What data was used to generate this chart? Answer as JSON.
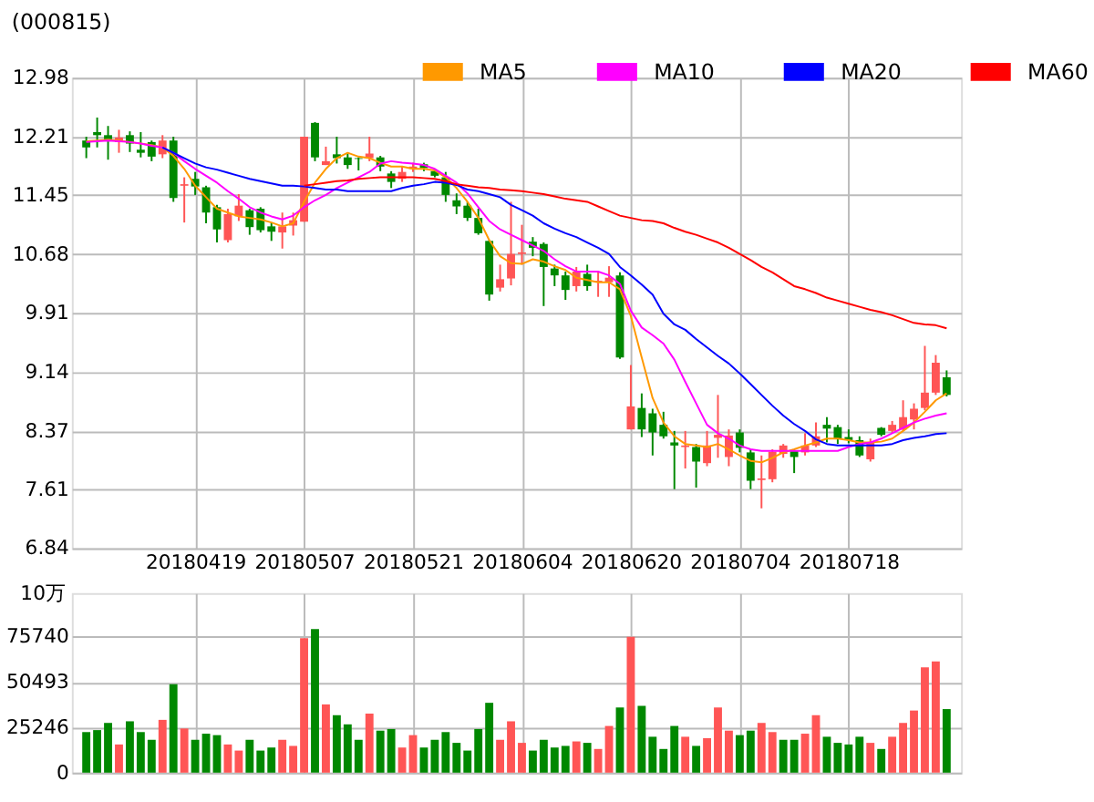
{
  "chart_data": [
    {
      "type": "candlestick",
      "title": "(000815)",
      "categories": [
        null,
        null,
        null,
        null,
        null,
        null,
        null,
        null,
        null,
        null,
        "20180419",
        null,
        null,
        null,
        null,
        null,
        null,
        null,
        null,
        null,
        "20180507",
        null,
        null,
        null,
        null,
        null,
        null,
        null,
        null,
        null,
        "20180521",
        null,
        null,
        null,
        null,
        null,
        null,
        null,
        null,
        null,
        "20180604",
        null,
        null,
        null,
        null,
        null,
        null,
        null,
        null,
        null,
        "20180620",
        null,
        null,
        null,
        null,
        null,
        null,
        null,
        null,
        null,
        "20180704",
        null,
        null,
        null,
        null,
        null,
        null,
        null,
        null,
        null,
        "20180718",
        null,
        null,
        null,
        null,
        null,
        null,
        null,
        null,
        null
      ],
      "ohlc": [
        [
          12.16,
          12.21,
          11.93,
          12.07
        ],
        [
          12.27,
          12.46,
          12.07,
          12.23
        ],
        [
          12.23,
          12.35,
          11.91,
          12.16
        ],
        [
          12.14,
          12.3,
          12.0,
          12.2
        ],
        [
          12.23,
          12.28,
          12.01,
          12.12
        ],
        [
          12.04,
          12.27,
          11.94,
          12.0
        ],
        [
          12.14,
          12.16,
          11.89,
          11.95
        ],
        [
          11.98,
          12.23,
          11.93,
          12.16
        ],
        [
          12.16,
          12.21,
          11.36,
          11.41
        ],
        [
          11.57,
          11.68,
          11.09,
          11.59
        ],
        [
          11.66,
          11.75,
          11.45,
          11.56
        ],
        [
          11.55,
          11.57,
          11.08,
          11.22
        ],
        [
          11.29,
          11.32,
          10.83,
          11.0
        ],
        [
          10.86,
          11.27,
          10.83,
          11.2
        ],
        [
          11.17,
          11.46,
          11.11,
          11.31
        ],
        [
          11.25,
          11.27,
          10.93,
          11.03
        ],
        [
          11.27,
          11.29,
          10.96,
          10.99
        ],
        [
          11.04,
          11.09,
          10.85,
          10.97
        ],
        [
          10.96,
          11.22,
          10.75,
          11.04
        ],
        [
          11.05,
          11.22,
          10.92,
          11.12
        ],
        [
          11.1,
          12.21,
          11.1,
          12.21
        ],
        [
          12.39,
          12.4,
          11.89,
          11.94
        ],
        [
          11.84,
          12.08,
          11.84,
          11.89
        ],
        [
          11.98,
          12.21,
          11.86,
          11.93
        ],
        [
          11.94,
          11.99,
          11.79,
          11.84
        ],
        [
          11.93,
          11.94,
          11.77,
          11.92
        ],
        [
          11.93,
          12.21,
          11.89,
          11.99
        ],
        [
          11.94,
          11.96,
          11.76,
          11.82
        ],
        [
          11.73,
          11.76,
          11.54,
          11.62
        ],
        [
          11.66,
          11.82,
          11.62,
          11.75
        ],
        [
          11.79,
          11.87,
          11.75,
          11.82
        ],
        [
          11.85,
          11.87,
          11.76,
          11.8
        ],
        [
          11.76,
          11.79,
          11.68,
          11.7
        ],
        [
          11.68,
          11.75,
          11.36,
          11.45
        ],
        [
          11.38,
          11.47,
          11.2,
          11.3
        ],
        [
          11.31,
          11.36,
          11.11,
          11.15
        ],
        [
          11.15,
          11.27,
          10.93,
          10.95
        ],
        [
          10.85,
          10.86,
          10.07,
          10.15
        ],
        [
          10.24,
          10.54,
          10.19,
          10.35
        ],
        [
          10.36,
          11.36,
          10.27,
          10.68
        ],
        [
          10.68,
          11.06,
          10.54,
          10.7
        ],
        [
          10.84,
          10.9,
          10.65,
          10.76
        ],
        [
          10.81,
          10.83,
          10.0,
          10.51
        ],
        [
          10.49,
          10.54,
          10.26,
          10.4
        ],
        [
          10.4,
          10.45,
          10.08,
          10.21
        ],
        [
          10.26,
          10.51,
          10.19,
          10.45
        ],
        [
          10.42,
          10.54,
          10.2,
          10.26
        ],
        [
          10.31,
          10.45,
          10.12,
          10.33
        ],
        [
          10.31,
          10.52,
          10.12,
          10.37
        ],
        [
          10.4,
          10.44,
          9.31,
          9.33
        ],
        [
          8.39,
          9.23,
          8.39,
          8.69
        ],
        [
          8.67,
          8.86,
          8.29,
          8.39
        ],
        [
          8.6,
          8.66,
          8.05,
          8.35
        ],
        [
          8.45,
          8.62,
          8.27,
          8.3
        ],
        [
          8.22,
          8.37,
          7.61,
          8.18
        ],
        [
          8.16,
          8.37,
          7.88,
          8.18
        ],
        [
          8.16,
          8.2,
          7.63,
          7.97
        ],
        [
          7.95,
          8.37,
          7.91,
          8.18
        ],
        [
          8.28,
          8.84,
          8.02,
          8.32
        ],
        [
          8.03,
          8.39,
          7.91,
          8.31
        ],
        [
          8.35,
          8.39,
          8.09,
          8.15
        ],
        [
          8.09,
          8.13,
          7.61,
          7.72
        ],
        [
          7.73,
          8.05,
          7.36,
          7.75
        ],
        [
          7.74,
          8.13,
          7.7,
          8.1
        ],
        [
          8.07,
          8.2,
          8.02,
          8.18
        ],
        [
          8.11,
          8.13,
          7.82,
          8.03
        ],
        [
          8.09,
          8.34,
          8.05,
          8.18
        ],
        [
          8.18,
          8.48,
          8.16,
          8.3
        ],
        [
          8.45,
          8.55,
          8.22,
          8.4
        ],
        [
          8.42,
          8.45,
          8.2,
          8.27
        ],
        [
          8.29,
          8.39,
          8.21,
          8.25
        ],
        [
          8.25,
          8.3,
          8.03,
          8.05
        ],
        [
          8.0,
          8.27,
          7.97,
          8.22
        ],
        [
          8.41,
          8.42,
          8.3,
          8.32
        ],
        [
          8.37,
          8.5,
          8.34,
          8.45
        ],
        [
          8.39,
          8.77,
          8.37,
          8.55
        ],
        [
          8.52,
          8.73,
          8.39,
          8.66
        ],
        [
          8.67,
          9.48,
          8.64,
          8.87
        ],
        [
          8.87,
          9.36,
          8.84,
          9.26
        ],
        [
          9.07,
          9.16,
          8.82,
          8.84
        ]
      ],
      "colors": [
        "#008800",
        "#008800",
        "#008800",
        "#ff5555",
        "#008800",
        "#008800",
        "#008800",
        "#ff5555",
        "#008800",
        "#ff5555",
        "#008800",
        "#008800",
        "#008800",
        "#ff5555",
        "#ff5555",
        "#008800",
        "#008800",
        "#008800",
        "#ff5555",
        "#ff5555",
        "#ff5555",
        "#008800",
        "#ff5555",
        "#008800",
        "#008800",
        "#008800",
        "#ff5555",
        "#008800",
        "#008800",
        "#ff5555",
        "#ff5555",
        "#008800",
        "#008800",
        "#008800",
        "#008800",
        "#008800",
        "#008800",
        "#008800",
        "#ff5555",
        "#ff5555",
        "#ff5555",
        "#008800",
        "#008800",
        "#008800",
        "#008800",
        "#ff5555",
        "#008800",
        "#ff5555",
        "#ff5555",
        "#008800",
        "#ff5555",
        "#008800",
        "#008800",
        "#008800",
        "#008800",
        "#ff5555",
        "#008800",
        "#ff5555",
        "#ff5555",
        "#ff5555",
        "#008800",
        "#008800",
        "#ff5555",
        "#ff5555",
        "#ff5555",
        "#008800",
        "#ff5555",
        "#ff5555",
        "#008800",
        "#008800",
        "#008800",
        "#008800",
        "#ff5555",
        "#008800",
        "#ff5555",
        "#ff5555",
        "#ff5555",
        "#ff5555",
        "#ff5555",
        "#008800"
      ],
      "series": [
        {
          "name": "MA5",
          "type": "line",
          "color": "#ff9900",
          "values": [
            12.15,
            12.16,
            12.17,
            12.16,
            12.14,
            12.12,
            12.1,
            12.07,
            11.96,
            11.79,
            11.57,
            11.42,
            11.27,
            11.22,
            11.17,
            11.15,
            11.13,
            11.09,
            11.04,
            11.08,
            11.36,
            11.61,
            11.79,
            11.93,
            12.0,
            11.95,
            11.93,
            11.87,
            11.82,
            11.82,
            11.79,
            11.79,
            11.77,
            11.68,
            11.54,
            11.36,
            11.15,
            10.86,
            10.65,
            10.56,
            10.55,
            10.61,
            10.58,
            10.52,
            10.47,
            10.37,
            10.34,
            10.31,
            10.31,
            10.22,
            9.87,
            9.33,
            8.8,
            8.48,
            8.3,
            8.2,
            8.18,
            8.16,
            8.2,
            8.13,
            8.05,
            7.98,
            7.96,
            8.02,
            8.09,
            8.13,
            8.18,
            8.22,
            8.27,
            8.27,
            8.25,
            8.22,
            8.22,
            8.23,
            8.27,
            8.37,
            8.48,
            8.62,
            8.77,
            8.86
          ]
        },
        {
          "name": "MA10",
          "type": "line",
          "color": "#ff00ff",
          "values": [
            12.14,
            12.15,
            12.16,
            12.15,
            12.14,
            12.12,
            12.09,
            12.07,
            12.0,
            11.89,
            11.79,
            11.7,
            11.61,
            11.5,
            11.4,
            11.29,
            11.22,
            11.17,
            11.13,
            11.18,
            11.29,
            11.38,
            11.45,
            11.54,
            11.61,
            11.68,
            11.75,
            11.86,
            11.89,
            11.87,
            11.86,
            11.84,
            11.79,
            11.7,
            11.61,
            11.47,
            11.29,
            11.11,
            11.0,
            10.93,
            10.86,
            10.79,
            10.72,
            10.61,
            10.52,
            10.45,
            10.45,
            10.45,
            10.4,
            10.29,
            9.94,
            9.72,
            9.62,
            9.51,
            9.3,
            9.01,
            8.73,
            8.45,
            8.34,
            8.27,
            8.18,
            8.13,
            8.11,
            8.11,
            8.11,
            8.11,
            8.11,
            8.11,
            8.11,
            8.11,
            8.16,
            8.2,
            8.22,
            8.27,
            8.34,
            8.41,
            8.48,
            8.53,
            8.57,
            8.6
          ]
        },
        {
          "name": "MA20",
          "type": "line",
          "color": "#0000ff",
          "values": [
            null,
            null,
            null,
            null,
            null,
            null,
            null,
            12.07,
            12.0,
            11.93,
            11.86,
            11.81,
            11.78,
            11.74,
            11.7,
            11.66,
            11.63,
            11.6,
            11.57,
            11.57,
            11.56,
            11.54,
            11.52,
            11.52,
            11.5,
            11.5,
            11.5,
            11.5,
            11.5,
            11.54,
            11.57,
            11.59,
            11.62,
            11.61,
            11.58,
            11.52,
            11.5,
            11.46,
            11.42,
            11.32,
            11.25,
            11.18,
            11.08,
            11.01,
            10.95,
            10.9,
            10.83,
            10.76,
            10.68,
            10.51,
            10.4,
            10.28,
            10.15,
            9.9,
            9.76,
            9.69,
            9.57,
            9.46,
            9.35,
            9.25,
            9.12,
            8.98,
            8.84,
            8.7,
            8.57,
            8.46,
            8.37,
            8.26,
            8.2,
            8.18,
            8.18,
            8.18,
            8.18,
            8.18,
            8.2,
            8.25,
            8.28,
            8.3,
            8.33,
            8.34
          ]
        },
        {
          "name": "MA60",
          "type": "line",
          "color": "#ff0000",
          "values": [
            null,
            null,
            null,
            null,
            null,
            null,
            null,
            null,
            null,
            null,
            null,
            null,
            null,
            null,
            null,
            null,
            null,
            null,
            null,
            null,
            11.57,
            11.59,
            11.61,
            11.63,
            11.64,
            11.66,
            11.67,
            11.68,
            11.68,
            11.68,
            11.68,
            11.67,
            11.66,
            11.63,
            11.59,
            11.57,
            11.55,
            11.54,
            11.52,
            11.51,
            11.5,
            11.48,
            11.46,
            11.43,
            11.4,
            11.38,
            11.36,
            11.3,
            11.24,
            11.18,
            11.15,
            11.12,
            11.11,
            11.08,
            11.02,
            10.97,
            10.93,
            10.88,
            10.83,
            10.76,
            10.68,
            10.6,
            10.51,
            10.44,
            10.35,
            10.26,
            10.22,
            10.17,
            10.11,
            10.07,
            10.03,
            9.99,
            9.95,
            9.92,
            9.88,
            9.83,
            9.78,
            9.76,
            9.75,
            9.71
          ]
        }
      ],
      "ylim": [
        6.84,
        12.98
      ],
      "yticks": [
        {
          "value": 6.84,
          "label": "6.84"
        },
        {
          "value": 7.61,
          "label": "7.61"
        },
        {
          "value": 8.37,
          "label": "8.37"
        },
        {
          "value": 9.14,
          "label": "9.14"
        },
        {
          "value": 9.91,
          "label": "9.91"
        },
        {
          "value": 10.68,
          "label": "10.68"
        },
        {
          "value": 11.45,
          "label": "11.45"
        },
        {
          "value": 12.21,
          "label": "12.21"
        },
        {
          "value": 12.98,
          "label": "12.98"
        }
      ],
      "grid": true,
      "legend": "top right"
    },
    {
      "type": "bar",
      "categories": [
        null,
        null,
        null,
        null,
        null,
        null,
        null,
        null,
        null,
        null,
        null,
        null,
        null,
        null,
        null,
        null,
        null,
        null,
        null,
        null,
        null,
        null,
        null,
        null,
        null,
        null,
        null,
        null,
        null,
        null,
        null,
        null,
        null,
        null,
        null,
        null,
        null,
        null,
        null,
        null,
        null,
        null,
        null,
        null,
        null,
        null,
        null,
        null,
        null,
        null,
        null,
        null,
        null,
        null,
        null,
        null,
        null,
        null,
        null,
        null,
        null,
        null,
        null,
        null,
        null,
        null,
        null,
        null,
        null,
        null,
        null,
        null,
        null,
        null,
        null,
        null,
        null,
        null,
        null,
        null
      ],
      "values": [
        22600,
        23700,
        27700,
        15700,
        28600,
        22600,
        18300,
        29400,
        49200,
        24600,
        18300,
        21700,
        20900,
        15700,
        12300,
        18300,
        12300,
        14000,
        18300,
        14900,
        74900,
        80000,
        38000,
        32000,
        26900,
        18300,
        32900,
        23400,
        24300,
        14000,
        20900,
        14000,
        18300,
        22600,
        16600,
        12300,
        24300,
        38900,
        18300,
        28600,
        16600,
        12300,
        18300,
        14000,
        14900,
        17400,
        16600,
        13200,
        26000,
        36300,
        75700,
        37200,
        20000,
        13200,
        26000,
        20000,
        14900,
        19200,
        36300,
        23400,
        20900,
        23400,
        27700,
        22600,
        18300,
        18300,
        21700,
        32000,
        20000,
        16600,
        15700,
        20000,
        16600,
        13200,
        20000,
        27700,
        34600,
        58600,
        62000,
        35400
      ],
      "colors": [
        "#008800",
        "#008800",
        "#008800",
        "#ff5555",
        "#008800",
        "#008800",
        "#008800",
        "#ff5555",
        "#008800",
        "#ff5555",
        "#008800",
        "#008800",
        "#008800",
        "#ff5555",
        "#ff5555",
        "#008800",
        "#008800",
        "#008800",
        "#ff5555",
        "#ff5555",
        "#ff5555",
        "#008800",
        "#ff5555",
        "#008800",
        "#008800",
        "#008800",
        "#ff5555",
        "#008800",
        "#008800",
        "#ff5555",
        "#ff5555",
        "#008800",
        "#008800",
        "#008800",
        "#008800",
        "#008800",
        "#008800",
        "#008800",
        "#ff5555",
        "#ff5555",
        "#ff5555",
        "#008800",
        "#008800",
        "#008800",
        "#008800",
        "#ff5555",
        "#008800",
        "#ff5555",
        "#ff5555",
        "#008800",
        "#ff5555",
        "#008800",
        "#008800",
        "#008800",
        "#008800",
        "#ff5555",
        "#008800",
        "#ff5555",
        "#ff5555",
        "#ff5555",
        "#008800",
        "#008800",
        "#ff5555",
        "#ff5555",
        "#008800",
        "#008800",
        "#ff5555",
        "#ff5555",
        "#008800",
        "#008800",
        "#008800",
        "#008800",
        "#ff5555",
        "#008800",
        "#ff5555",
        "#ff5555",
        "#ff5555",
        "#ff5555",
        "#ff5555",
        "#008800"
      ],
      "ylim": [
        0,
        100000
      ],
      "yticks": [
        {
          "value": 0,
          "label": "0"
        },
        {
          "value": 25246,
          "label": "25246"
        },
        {
          "value": 50493,
          "label": "50493"
        },
        {
          "value": 75740,
          "label": "75740"
        }
      ],
      "ylabel": "10万",
      "tick_labels": "y",
      "grid": true
    }
  ]
}
